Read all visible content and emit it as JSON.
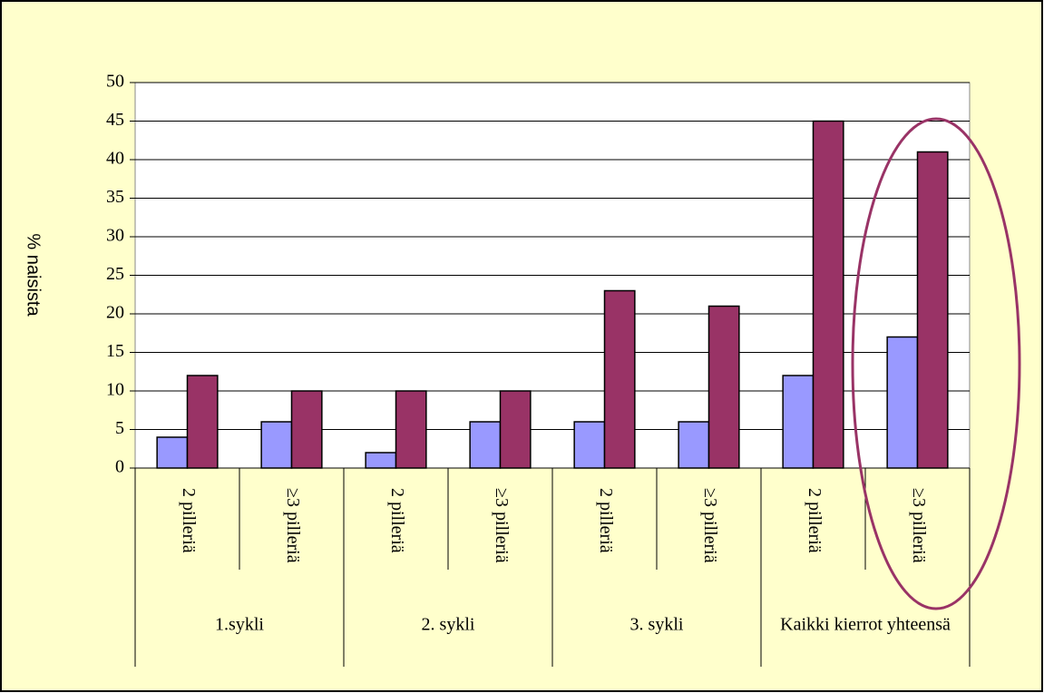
{
  "chart_data": {
    "type": "bar",
    "y_label": "% naisista",
    "categories": [
      "2 pilleriä",
      "≥3 pilleriä",
      "2 pilleriä",
      "≥3 pilleriä",
      "2 pilleriä",
      "≥3 pilleriä",
      "2 pilleriä",
      "≥3 pilleriä"
    ],
    "groups": [
      "1.sykli",
      "2. sykli",
      "3. sykli",
      "Kaikki kierrot yhteensä"
    ],
    "series": [
      {
        "color": "#9999ff",
        "values": [
          4,
          6,
          2,
          6,
          6,
          6,
          12,
          17
        ]
      },
      {
        "color": "#993366",
        "values": [
          12,
          10,
          10,
          10,
          23,
          21,
          45,
          41
        ]
      }
    ],
    "ylim": [
      0,
      50
    ],
    "yticks": [
      0,
      5,
      10,
      15,
      20,
      25,
      30,
      35,
      40,
      45,
      50
    ],
    "grid": true
  }
}
